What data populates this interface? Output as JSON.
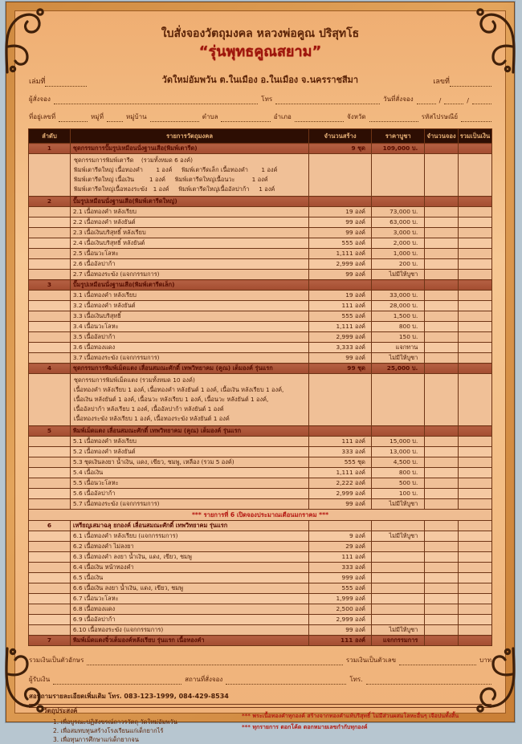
{
  "header": {
    "title": "ใบสั่งจองวัตถุมงคล หลวงพ่อคูณ ปริสุทโธ",
    "edition": "“รุ่นพุทธคูณสยาม”",
    "book_label": "เล่มที่",
    "no_label": "เลขที่",
    "temple": "วัดใหม่อัมพวัน ต.ในเมือง อ.ในเมือง จ.นครราชสีมา",
    "orderer_label": "ผู้สั่งจอง",
    "phone_label": "โทร",
    "date_label": "วันที่สั่งจอง",
    "addr": {
      "a": "ที่อยู่เลขที่",
      "b": "หมู่ที่",
      "c": "หมู่บ้าน",
      "d": "ตำบล",
      "e": "อำเภอ",
      "f": "จังหวัด",
      "g": "รหัสไปรษณีย์"
    }
  },
  "table": {
    "headers": [
      "ลำดับ",
      "รายการวัตถุมงคล",
      "จำนวนสร้าง",
      "ราคาบูชา",
      "จำนวนจอง",
      "รวมเป็นเงิน"
    ],
    "rows": [
      {
        "type": "section",
        "no": "1",
        "label": "ชุดกรรมการปั๊มรูปเหมือนนั่งฐานเสือ(พิมพ์เตารีด)",
        "qty": "9 ชุด",
        "price": "109,000 บ."
      },
      {
        "type": "detail",
        "lines": [
          "ชุดกรรมการพิมพ์เตารีด    (รวมทั้งหมด 6 องค์)",
          "พิมพ์เตารีดใหญ่ เนื้อทองคำ       1 องค์     พิมพ์เตารีดเล็ก เนื้อทองคำ       1 องค์",
          "พิมพ์เตารีดใหญ่ เนื้อเงิน        1 องค์     พิมพ์เตารีดใหญ่เนื้อนวะ         1 องค์",
          "พิมพ์เตารีดใหญ่เนื้อทองระฆัง   1 องค์     พิมพ์เตารีดใหญ่เนื้ออัลปาก้า     1 องค์"
        ]
      },
      {
        "type": "section",
        "no": "2",
        "label": "ปั๊มรูปเหมือนนั่งฐานเสือ(พิมพ์เตารีดใหญ่)",
        "qty": "",
        "price": ""
      },
      {
        "type": "item",
        "label": "2.1 เนื้อทองคำ หลังเรียบ",
        "qty": "19 องค์",
        "price": "73,000 บ."
      },
      {
        "type": "item",
        "label": "2.2 เนื้อทองคำ หลังยันต์",
        "qty": "99 องค์",
        "price": "63,000 บ."
      },
      {
        "type": "item",
        "label": "2.3 เนื้อเงินบริสุทธิ์ หลังเรียบ",
        "qty": "99 องค์",
        "price": "3,000 บ."
      },
      {
        "type": "item",
        "label": "2.4 เนื้อเงินบริสุทธิ์ หลังยันต์",
        "qty": "555 องค์",
        "price": "2,000 บ."
      },
      {
        "type": "item",
        "label": "2.5 เนื้อนวะโลหะ",
        "qty": "1,111 องค์",
        "price": "1,000 บ."
      },
      {
        "type": "item",
        "label": "2.6 เนื้ออัลปาก้า",
        "qty": "2,999 องค์",
        "price": "200 บ."
      },
      {
        "type": "item",
        "label": "2.7 เนื้อทองระฆัง  (แจกกรรมการ)",
        "qty": "99 องค์",
        "price": "ไม่มีให้บูชา"
      },
      {
        "type": "section",
        "no": "3",
        "label": "ปั๊มรูปเหมือนนั่งฐานเสือ(พิมพ์เตารีดเล็ก)",
        "qty": "",
        "price": ""
      },
      {
        "type": "item",
        "label": "3.1 เนื้อทองคำ หลังเรียบ",
        "qty": "19 องค์",
        "price": "33,000 บ."
      },
      {
        "type": "item",
        "label": "3.2 เนื้อทองคำ หลังยันต์",
        "qty": "111 องค์",
        "price": "28,000 บ."
      },
      {
        "type": "item",
        "label": "3.3 เนื้อเงินบริสุทธิ์",
        "qty": "555 องค์",
        "price": "1,500 บ."
      },
      {
        "type": "item",
        "label": "3.4 เนื้อนวะโลหะ",
        "qty": "1,111 องค์",
        "price": "800 บ."
      },
      {
        "type": "item",
        "label": "3.5 เนื้ออัลปาก้า",
        "qty": "2,999 องค์",
        "price": "150 บ."
      },
      {
        "type": "item",
        "label": "3.6 เนื้อทองแดง",
        "qty": "3,333 องค์",
        "price": "แจกทาน"
      },
      {
        "type": "item",
        "label": "3.7 เนื้อทองระฆัง (แจกกรรมการ)",
        "qty": "99 องค์",
        "price": "ไม่มีให้บูชา"
      },
      {
        "type": "section",
        "no": "4",
        "label": "ชุดกรรมการพิมพ์เม็ดแตง เลื่อนสมณะศักดิ์ เทพวิทยาคม (คูณ) เต็มองค์ รุ่นแรก",
        "qty": "99 ชุด",
        "price": "25,000 บ."
      },
      {
        "type": "detail",
        "lines": [
          "ชุดกรรมการพิมพ์เม็ดแตง (รวมทั้งหมด 10 องค์)",
          "เนื้อทองคำ หลังเรียบ 1 องค์, เนื้อทองคำ หลังยันต์ 1 องค์, เนื้อเงิน หลังเรียบ 1 องค์,",
          "เนื้อเงิน หลังยันต์ 1 องค์, เนื้อนวะ หลังเรียบ 1 องค์, เนื้อนวะ หลังยันต์ 1 องค์,",
          "เนื้ออัลปาก้า หลังเรียบ 1 องค์, เนื้ออัลปาก้า หลังยันต์ 1 องค์",
          "เนื้อทองระฆัง หลังเรียบ 1 องค์, เนื้อทองระฆัง หลังยันต์ 1 องค์"
        ]
      },
      {
        "type": "section",
        "no": "5",
        "label": "พิมพ์เม็ดแตง เลื่อนสมณะศักดิ์ เทพวิทยาคม (คูณ) เต็มองค์ รุ่นแรก",
        "qty": "",
        "price": ""
      },
      {
        "type": "item",
        "label": "5.1 เนื้อทองคำ หลังเรียบ",
        "qty": "111 องค์",
        "price": "15,000 บ."
      },
      {
        "type": "item",
        "label": "5.2 เนื้อทองคำ หลังยันต์",
        "qty": "333 องค์",
        "price": "13,000 บ."
      },
      {
        "type": "item",
        "label": "5.3 ชุดเงินลงยา น้ำเงิน, แดง, เขียว, ชมพู, เหลือง (รวม 5 องค์)",
        "qty": "555 ชุด",
        "price": "4,500 บ."
      },
      {
        "type": "item",
        "label": "5.4 เนื้อเงิน",
        "qty": "1,111 องค์",
        "price": "800 บ."
      },
      {
        "type": "item",
        "label": "5.5 เนื้อนวะโลหะ",
        "qty": "2,222 องค์",
        "price": "500 บ."
      },
      {
        "type": "item",
        "label": "5.6 เนื้ออัลปาก้า",
        "qty": "2,999 องค์",
        "price": "100 บ."
      },
      {
        "type": "item",
        "label": "5.7 เนื้อทองระฆัง (แจกกรรมการ)",
        "qty": "99 องค์",
        "price": "ไม่มีให้บูชา"
      },
      {
        "type": "note",
        "label": "*** รายการที่ 6 เปิดจองประมาณเดือนมกราคม ***"
      },
      {
        "type": "section",
        "no": "6",
        "label": "เหรียญเสมาฉลุ ยกองค์  เลื่อนสมณะศักดิ์ เทพวิทยาคม รุ่นแรก",
        "qty": "",
        "price": ""
      },
      {
        "type": "item",
        "label": "6.1 เนื้อทองคำ หลังเรียบ (แจกกรรมการ)",
        "qty": "9 องค์",
        "price": "ไม่มีให้บูชา"
      },
      {
        "type": "item",
        "label": "6.2 เนื้อทองคำ ไม่ลงยา",
        "qty": "29 องค์",
        "price": ""
      },
      {
        "type": "item",
        "label": "6.3 เนื้อทองคำ ลงยา น้ำเงิน, แดง, เขียว, ชมพู",
        "qty": "111 องค์",
        "price": ""
      },
      {
        "type": "item",
        "label": "6.4 เนื้อเงิน หน้าทองคำ",
        "qty": "333 องค์",
        "price": ""
      },
      {
        "type": "item",
        "label": "6.5 เนื้อเงิน",
        "qty": "999 องค์",
        "price": ""
      },
      {
        "type": "item",
        "label": "6.6 เนื้อเงิน ลงยา น้ำเงิน, แดง, เขียว, ชมพู",
        "qty": "555 องค์",
        "price": ""
      },
      {
        "type": "item",
        "label": "6.7 เนื้อนวะโลหะ",
        "qty": "1,999 องค์",
        "price": ""
      },
      {
        "type": "item",
        "label": "6.8 เนื้อทองแดง",
        "qty": "2,500 องค์",
        "price": ""
      },
      {
        "type": "item",
        "label": "6.9 เนื้ออัลปาก้า",
        "qty": "2,999 องค์",
        "price": ""
      },
      {
        "type": "item",
        "label": "6.10 เนื้อทองระฆัง (แจกกรรมการ)",
        "qty": "99 องค์",
        "price": "ไม่มีให้บูชา"
      },
      {
        "type": "section",
        "no": "7",
        "label": "พิมพ์เม็ดแตงจิ๋วเต็มองค์หลังเรียบ รุ่นแรก   เนื้อทองคำ",
        "qty": "111 องค์",
        "price": "แจกกรรมการ"
      }
    ]
  },
  "footer": {
    "total_text_label": "รวมเงินเป็นตัวอักษร",
    "total_num_label": "รวมเงินเป็นตัวเลข",
    "baht_label": "บาท",
    "receiver_label": "ผู้รับเงิน",
    "place_label": "สถานที่สั่งจอง",
    "tel_label": "โทร.",
    "contact": "สอบถามรายละเอียดเพิ่มเติม   โทร. 083-123-1999, 084-429-8534",
    "purpose_title": "วัตถุประสงค์",
    "purposes": [
      "1. เพื่อบูรณะปฏิสังขรณ์ถาวรวัตถุ วัดใหม่อัมพวัน",
      "2. เพื่อสมทบทุนสร้างโรงเรียนแก่เด็กยากไร้",
      "3. เพื่อทุนการศึกษาแก่เด็กยากจน"
    ],
    "red_notes": [
      "*** พระเนื้อทองคำทุกองค์ สร้างจากทองคำแท้บริสุทธิ์ ไม่มีส่วนผสมโลหะอื่นๆ เจือปนทั้งสิ้น",
      "*** ทุกรายการ ตอกโค้ด ตอกหมายเลขกำกับทุกองค์"
    ]
  },
  "colors": {
    "accent_red": "#9e150c",
    "frame_orange": "#d28a42",
    "paper": "#f3bd85",
    "table_header_bg": "#2d0e03",
    "section_row_bg": "#a84f33"
  }
}
